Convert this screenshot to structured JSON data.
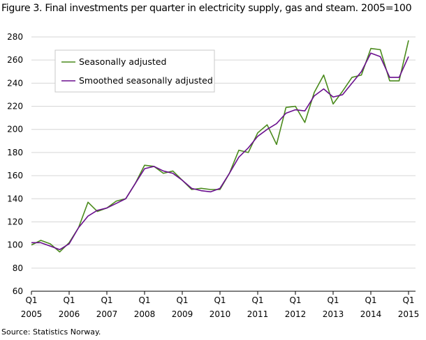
{
  "title": "Figure 3. Final investments per quarter in electricity supply, gas and steam. 2005=100",
  "source": "Source: Statistics Norway.",
  "chart_data": {
    "type": "line",
    "title": "Figure 3. Final investments per quarter in electricity supply, gas and steam. 2005=100",
    "xlabel": "",
    "ylabel": "",
    "ylim": [
      60,
      280
    ],
    "yticks": [
      60,
      80,
      100,
      120,
      140,
      160,
      180,
      200,
      220,
      240,
      260,
      280
    ],
    "x_tick_labels": [
      {
        "quarter": "Q1",
        "year": "2005"
      },
      {
        "quarter": "Q1",
        "year": "2006"
      },
      {
        "quarter": "Q1",
        "year": "2007"
      },
      {
        "quarter": "Q1",
        "year": "2008"
      },
      {
        "quarter": "Q1",
        "year": "2009"
      },
      {
        "quarter": "Q1",
        "year": "2010"
      },
      {
        "quarter": "Q1",
        "year": "2011"
      },
      {
        "quarter": "Q1",
        "year": "2012"
      },
      {
        "quarter": "Q1",
        "year": "2013"
      },
      {
        "quarter": "Q1",
        "year": "2014"
      },
      {
        "quarter": "Q1",
        "year": "2015"
      }
    ],
    "grid": "horizontal",
    "legend_position": "top-left",
    "series": [
      {
        "name": "Seasonally adjusted",
        "color": "#4a8a1c",
        "values": [
          100,
          104,
          101,
          94,
          102,
          115,
          137,
          129,
          132,
          138,
          140,
          153,
          169,
          168,
          162,
          164,
          156,
          148,
          149,
          148,
          148,
          162,
          182,
          180,
          197,
          204,
          187,
          219,
          220,
          206,
          232,
          247,
          222,
          233,
          245,
          247,
          270,
          269,
          242,
          242,
          277
        ]
      },
      {
        "name": "Smoothed seasonally adjusted",
        "color": "#6a0f8e",
        "values": [
          102,
          102,
          99,
          96,
          101,
          115,
          125,
          130,
          132,
          136,
          140,
          153,
          166,
          168,
          164,
          162,
          156,
          149,
          147,
          146,
          149,
          162,
          176,
          184,
          194,
          200,
          205,
          214,
          217,
          216,
          229,
          235,
          228,
          230,
          240,
          250,
          266,
          263,
          245,
          245,
          263
        ]
      }
    ]
  }
}
